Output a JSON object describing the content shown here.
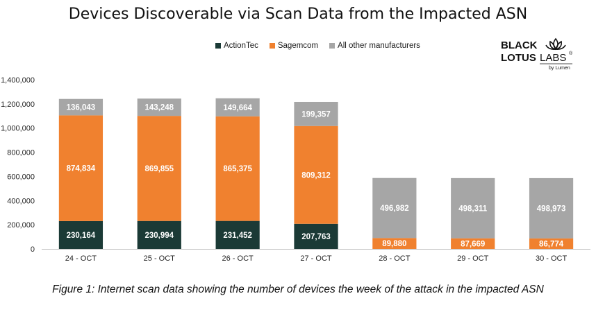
{
  "title": "Devices Discoverable via Scan Data from the Impacted ASN",
  "logo": {
    "line1": "BLACK",
    "line2": "LOTUS",
    "labs": "LABS",
    "sub": "by Lumen",
    "reg": "®"
  },
  "caption": "Figure 1: Internet scan data showing the number of devices the week of the attack in the impacted ASN",
  "colors": {
    "actiontec": "#1b3a36",
    "sagemcom": "#f0812f",
    "other": "#a6a6a6"
  },
  "chart_data": {
    "type": "bar",
    "stacked": true,
    "title": "Devices Discoverable via Scan Data from the Impacted ASN",
    "categories": [
      "24 - OCT",
      "25 - OCT",
      "26 - OCT",
      "27 - OCT",
      "28 - OCT",
      "29 - OCT",
      "30 - OCT"
    ],
    "series": [
      {
        "name": "ActionTec",
        "color": "#1b3a36",
        "values": [
          230164,
          230994,
          231452,
          207763,
          0,
          0,
          0
        ],
        "labels": [
          "230,164",
          "230,994",
          "231,452",
          "207,763",
          "",
          "",
          ""
        ]
      },
      {
        "name": "Sagemcom",
        "color": "#f0812f",
        "values": [
          874834,
          869855,
          865375,
          809312,
          89880,
          87669,
          86774
        ],
        "labels": [
          "874,834",
          "869,855",
          "865,375",
          "809,312",
          "89,880",
          "87,669",
          "86,774"
        ]
      },
      {
        "name": "All other manufacturers",
        "color": "#a6a6a6",
        "values": [
          136043,
          143248,
          149664,
          199357,
          496982,
          498311,
          498973
        ],
        "labels": [
          "136,043",
          "143,248",
          "149,664",
          "199,357",
          "496,982",
          "498,311",
          "498,973"
        ]
      }
    ],
    "ylim": [
      0,
      1400000
    ],
    "yticks": [
      0,
      200000,
      400000,
      600000,
      800000,
      1000000,
      1200000,
      1400000
    ],
    "ytick_labels": [
      "0",
      "200,000",
      "400,000",
      "600,000",
      "800,000",
      "1,000,000",
      "1,200,000",
      "1,400,000"
    ],
    "xlabel": "",
    "ylabel": "",
    "legend": "top-center"
  }
}
